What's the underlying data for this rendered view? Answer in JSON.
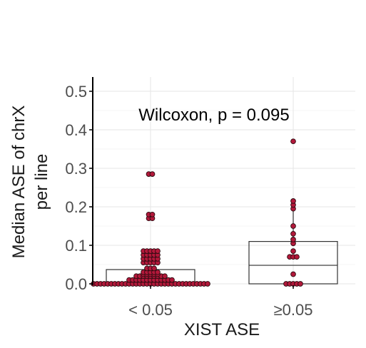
{
  "chart_data": {
    "type": "box",
    "xlabel": "XIST ASE",
    "ylabel_lines": [
      "Median ASE of chrX",
      "per line"
    ],
    "annotation": "Wilcoxon, p = 0.095",
    "ylim": [
      0,
      0.5
    ],
    "y_ticks": [
      0.0,
      0.1,
      0.2,
      0.3,
      0.4,
      0.5
    ],
    "y_tick_labels": [
      "0.0",
      "0.1",
      "0.2",
      "0.3",
      "0.4",
      "0.5"
    ],
    "categories": [
      "< 0.05",
      "≥0.05"
    ],
    "grid": true,
    "colors": {
      "point_fill": "#b2183a",
      "point_edge": "#2b0a10",
      "box_edge": "#333333",
      "grid": "#e6e6e6",
      "axis": "#000000"
    },
    "boxes": [
      {
        "category": "< 0.05",
        "q1": 0.0,
        "median": 0.0,
        "q3": 0.037,
        "whisker_low": 0.0,
        "whisker_high": 0.037
      },
      {
        "category": "≥0.05",
        "q1": 0.0,
        "median": 0.048,
        "q3": 0.11,
        "whisker_low": 0.0,
        "whisker_high": 0.2
      }
    ],
    "points": [
      {
        "category": "< 0.05",
        "rows": [
          {
            "y": 0.0,
            "n": 33
          },
          {
            "y": 0.01,
            "n": 13
          },
          {
            "y": 0.02,
            "n": 9
          },
          {
            "y": 0.025,
            "n": 5
          },
          {
            "y": 0.03,
            "n": 5
          },
          {
            "y": 0.04,
            "n": 3
          },
          {
            "y": 0.055,
            "n": 5
          },
          {
            "y": 0.065,
            "n": 5
          },
          {
            "y": 0.075,
            "n": 5
          },
          {
            "y": 0.085,
            "n": 5
          },
          {
            "y": 0.17,
            "n": 2
          },
          {
            "y": 0.18,
            "n": 2
          },
          {
            "y": 0.285,
            "n": 2
          }
        ]
      },
      {
        "category": "≥0.05",
        "rows": [
          {
            "y": 0.0,
            "n": 5
          },
          {
            "y": 0.025,
            "n": 1
          },
          {
            "y": 0.07,
            "n": 3
          },
          {
            "y": 0.085,
            "n": 1
          },
          {
            "y": 0.105,
            "n": 1
          },
          {
            "y": 0.115,
            "n": 1
          },
          {
            "y": 0.13,
            "n": 1
          },
          {
            "y": 0.15,
            "n": 1
          },
          {
            "y": 0.195,
            "n": 1
          },
          {
            "y": 0.205,
            "n": 1
          },
          {
            "y": 0.215,
            "n": 1
          },
          {
            "y": 0.37,
            "n": 1
          }
        ]
      }
    ]
  }
}
